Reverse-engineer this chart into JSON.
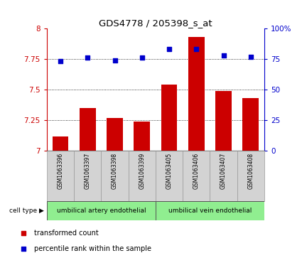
{
  "title": "GDS4778 / 205398_s_at",
  "samples": [
    "GSM1063396",
    "GSM1063397",
    "GSM1063398",
    "GSM1063399",
    "GSM1063405",
    "GSM1063406",
    "GSM1063407",
    "GSM1063408"
  ],
  "transformed_counts": [
    7.12,
    7.35,
    7.27,
    7.24,
    7.54,
    7.93,
    7.49,
    7.43
  ],
  "percentile_ranks": [
    73,
    76,
    74,
    76,
    83,
    83,
    78,
    77
  ],
  "ylim_left": [
    7.0,
    8.0
  ],
  "ylim_right": [
    0,
    100
  ],
  "yticks_left": [
    7.0,
    7.25,
    7.5,
    7.75,
    8.0
  ],
  "yticks_right": [
    0,
    25,
    50,
    75,
    100
  ],
  "ytick_labels_left": [
    "7",
    "7.25",
    "7.5",
    "7.75",
    "8"
  ],
  "ytick_labels_right": [
    "0",
    "25",
    "50",
    "75",
    "100%"
  ],
  "bar_color": "#cc0000",
  "dot_color": "#0000cc",
  "grid_color": "#000000",
  "cell_type_label": "cell type",
  "cell_type_artery": "umbilical artery endothelial",
  "cell_type_vein": "umbilical vein endothelial",
  "cell_type_color": "#90ee90",
  "legend_bar_label": "transformed count",
  "legend_dot_label": "percentile rank within the sample",
  "bar_width": 0.6,
  "background_color": "#ffffff",
  "tick_box_color": "#d3d3d3",
  "spine_color_left": "#cc0000",
  "spine_color_right": "#0000cc"
}
